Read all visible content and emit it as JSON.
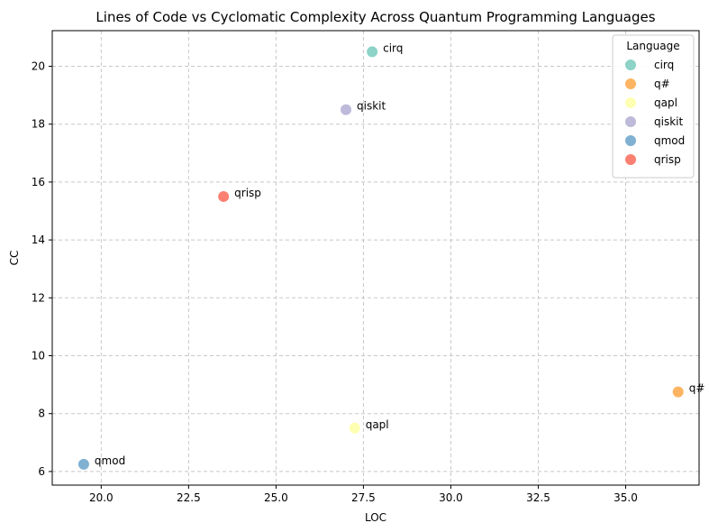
{
  "chart_data": {
    "type": "scatter",
    "title": "Lines of Code vs Cyclomatic Complexity Across Quantum Programming Languages",
    "xlabel": "LOC",
    "ylabel": "CC",
    "xlim": [
      18.6,
      37.1
    ],
    "ylim": [
      5.53,
      21.23
    ],
    "xticks": [
      "20.0",
      "22.5",
      "25.0",
      "27.5",
      "30.0",
      "32.5",
      "35.0"
    ],
    "yticks": [
      "6",
      "8",
      "10",
      "12",
      "14",
      "16",
      "18",
      "20"
    ],
    "grid": true,
    "legend": {
      "title": "Language",
      "position": "top-right"
    },
    "points": [
      {
        "name": "cirq",
        "x": 27.75,
        "y": 20.5,
        "color": "#8dd3c7"
      },
      {
        "name": "q#",
        "x": 36.5,
        "y": 8.75,
        "color": "#fdb462"
      },
      {
        "name": "qapl",
        "x": 27.25,
        "y": 7.5,
        "color": "#ffffb3"
      },
      {
        "name": "qiskit",
        "x": 27.0,
        "y": 18.5,
        "color": "#bebada"
      },
      {
        "name": "qmod",
        "x": 19.5,
        "y": 6.25,
        "color": "#80b1d3"
      },
      {
        "name": "qrisp",
        "x": 23.5,
        "y": 15.5,
        "color": "#fb8072"
      }
    ]
  }
}
